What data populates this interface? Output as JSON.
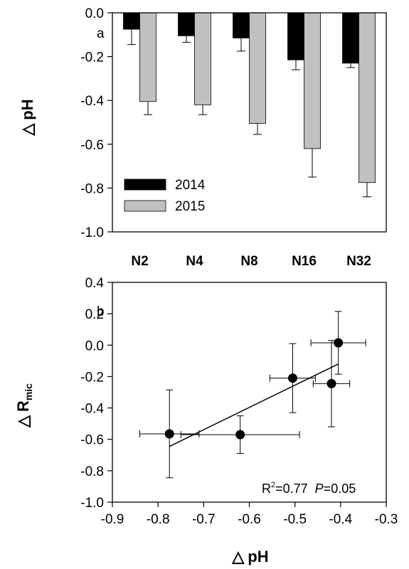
{
  "chart_data": [
    {
      "type": "bar",
      "panel_label": "a",
      "ylabel": {
        "symbol": "△",
        "text": "pH"
      },
      "categories": [
        "N2",
        "N4",
        "N8",
        "N16",
        "N32"
      ],
      "ylim": [
        -1.0,
        0.0
      ],
      "yticks": [
        "0.0",
        "-0.2",
        "-0.4",
        "-0.6",
        "-0.8",
        "-1.0"
      ],
      "legend_position": "bottom-left",
      "series": [
        {
          "name": "2014",
          "color": "#000000",
          "values": [
            -0.075,
            -0.105,
            -0.115,
            -0.215,
            -0.23
          ],
          "errors": [
            0.07,
            0.03,
            0.06,
            0.045,
            0.02
          ]
        },
        {
          "name": "2015",
          "color": "#c0c0c0",
          "values": [
            -0.405,
            -0.42,
            -0.505,
            -0.62,
            -0.775
          ],
          "errors": [
            0.06,
            0.045,
            0.05,
            0.13,
            0.065
          ]
        }
      ]
    },
    {
      "type": "scatter",
      "panel_label": "b",
      "xlabel": {
        "symbol": "△",
        "text": "pH"
      },
      "ylabel": {
        "symbol": "△",
        "text": "R",
        "subscript": "mic"
      },
      "xlim": [
        -0.9,
        -0.3
      ],
      "ylim": [
        -1.0,
        0.4
      ],
      "xticks": [
        "-0.9",
        "-0.8",
        "-0.7",
        "-0.6",
        "-0.5",
        "-0.4",
        "-0.3"
      ],
      "yticks": [
        "0.4",
        "0.2",
        "0.0",
        "-0.2",
        "-0.4",
        "-0.6",
        "-0.8",
        "-1.0"
      ],
      "points": [
        {
          "x": -0.775,
          "y": -0.565,
          "xerr": 0.065,
          "yerr": 0.28
        },
        {
          "x": -0.62,
          "y": -0.57,
          "xerr": 0.13,
          "yerr": 0.12
        },
        {
          "x": -0.505,
          "y": -0.21,
          "xerr": 0.05,
          "yerr": 0.22
        },
        {
          "x": -0.42,
          "y": -0.245,
          "xerr": 0.04,
          "yerr": 0.275
        },
        {
          "x": -0.405,
          "y": 0.015,
          "xerr": 0.06,
          "yerr": 0.2
        }
      ],
      "fit_line": {
        "x": [
          -0.775,
          -0.405
        ],
        "y": [
          -0.645,
          -0.12
        ]
      },
      "annotation": {
        "r_label": "R",
        "r_sup": "2",
        "r_value": "=0.77",
        "p_label": "P",
        "p_value": "=0.05"
      }
    }
  ]
}
